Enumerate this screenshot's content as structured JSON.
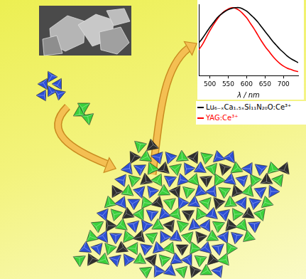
{
  "chart_data": {
    "type": "line",
    "x_label": "λ / nm",
    "x": [
      470,
      480,
      490,
      500,
      510,
      520,
      530,
      540,
      550,
      560,
      570,
      580,
      590,
      600,
      610,
      620,
      630,
      640,
      650,
      660,
      670,
      680,
      690,
      700,
      710,
      720,
      730,
      740
    ],
    "series": [
      {
        "name": "Lu₆₋ₓCa₁.₅ₓSi₁₁N₂₀O:Ce³⁺",
        "color": "#000000",
        "values": [
          0.48,
          0.55,
          0.63,
          0.71,
          0.78,
          0.85,
          0.9,
          0.94,
          0.97,
          0.99,
          1.0,
          1.0,
          0.98,
          0.95,
          0.9,
          0.85,
          0.79,
          0.72,
          0.65,
          0.58,
          0.51,
          0.45,
          0.39,
          0.34,
          0.29,
          0.25,
          0.22,
          0.19
        ]
      },
      {
        "name": "YAG:Ce³⁺",
        "color": "#ff0000",
        "values": [
          0.38,
          0.46,
          0.56,
          0.66,
          0.75,
          0.83,
          0.9,
          0.95,
          0.98,
          1.0,
          0.99,
          0.96,
          0.91,
          0.85,
          0.77,
          0.69,
          0.6,
          0.51,
          0.43,
          0.36,
          0.29,
          0.23,
          0.18,
          0.14,
          0.11,
          0.09,
          0.07,
          0.06
        ]
      }
    ],
    "xlim": [
      470,
      740
    ],
    "xticks": [
      500,
      550,
      600,
      650,
      700
    ],
    "ylim": [
      0,
      1.05
    ],
    "grid": false,
    "tick_labels": "x",
    "legend": "bottom"
  }
}
